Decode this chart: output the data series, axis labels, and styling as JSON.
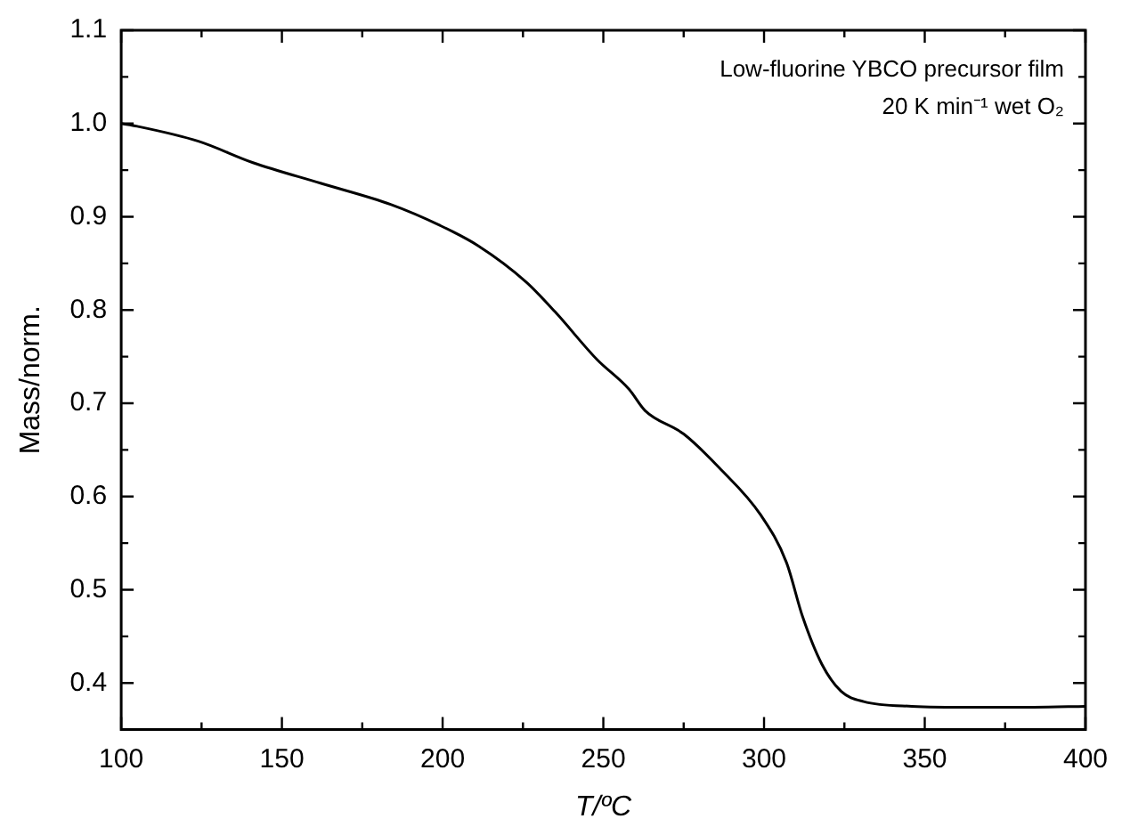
{
  "chart_data": {
    "type": "line",
    "xlabel": "T/ºC",
    "ylabel": "Mass/norm.",
    "annotations": [
      "Low-fluorine YBCO precursor film",
      "20 K min⁻¹ wet O₂"
    ],
    "xlim": [
      100,
      400
    ],
    "xticks": [
      100,
      150,
      200,
      250,
      300,
      350,
      400
    ],
    "ylim": [
      0.35,
      1.1
    ],
    "yticks": [
      0.4,
      0.5,
      0.6,
      0.7,
      0.8,
      0.9,
      {
        "value": 1,
        "label": "1.0"
      },
      1.1
    ],
    "grid": false,
    "legend": false,
    "marker": "none",
    "line_style": "solid",
    "series": [
      {
        "color": "#000000",
        "x": [
          100,
          105,
          124,
          141,
          162,
          184,
          199,
          211,
          226,
          235,
          248,
          258,
          263,
          275,
          286,
          299,
          307,
          312,
          318,
          324,
          331,
          346,
          365,
          384,
          400
        ],
        "values": [
          1.0,
          0.997,
          0.981,
          0.958,
          0.936,
          0.913,
          0.891,
          0.869,
          0.83,
          0.798,
          0.747,
          0.715,
          0.692,
          0.667,
          0.631,
          0.58,
          0.529,
          0.471,
          0.42,
          0.391,
          0.38,
          0.375,
          0.374,
          0.374,
          0.375
        ]
      }
    ]
  }
}
